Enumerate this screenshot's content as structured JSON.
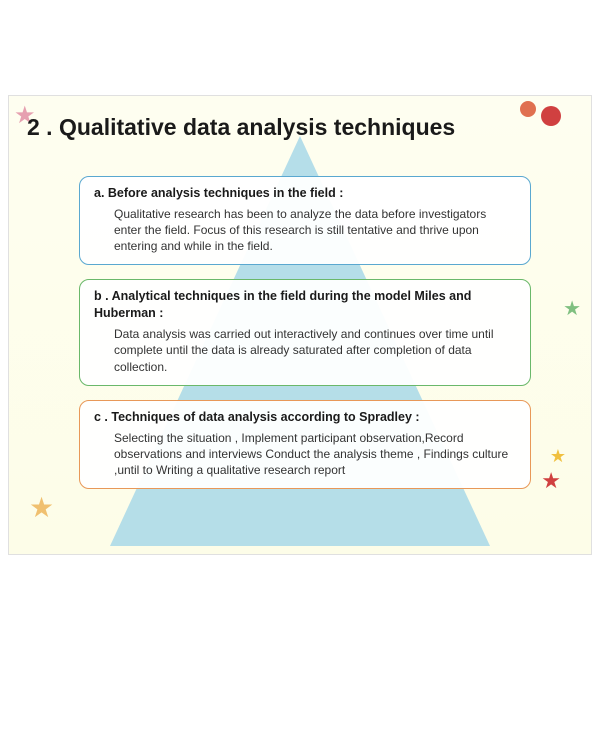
{
  "slide": {
    "title": "2 . Qualitative data analysis techniques",
    "title_fontsize": 23,
    "title_color": "#1a1a1a",
    "background_color": "#fefef0",
    "triangle_color": "#a8d8e8",
    "boxes": [
      {
        "id": "a",
        "border_color": "#5aa8d0",
        "heading": "a. Before analysis techniques in the field :",
        "body": "Qualitative research has been to analyze the data before investigators enter the field. Focus of this research is still tentative and thrive upon entering and while in the field."
      },
      {
        "id": "b",
        "border_color": "#6ab86a",
        "heading": "b . Analytical techniques in the field during the model Miles and Huberman :",
        "body": "Data analysis was carried out interactively and continues over time until complete until the data is already saturated after completion of data collection."
      },
      {
        "id": "c",
        "border_color": "#e89858",
        "heading": "c . Techniques of data analysis according to Spradley :",
        "body": "Selecting the situation , Implement participant observation,Record observations and interviews Conduct the analysis theme , Findings culture ,until to Writing a qualitative research report"
      }
    ],
    "decorations": {
      "star_colors": [
        "#e6a0b0",
        "#f0c070",
        "#d04040",
        "#80c080",
        "#f0c040"
      ],
      "fruit_colors": [
        "#d04040",
        "#e07050"
      ]
    }
  }
}
